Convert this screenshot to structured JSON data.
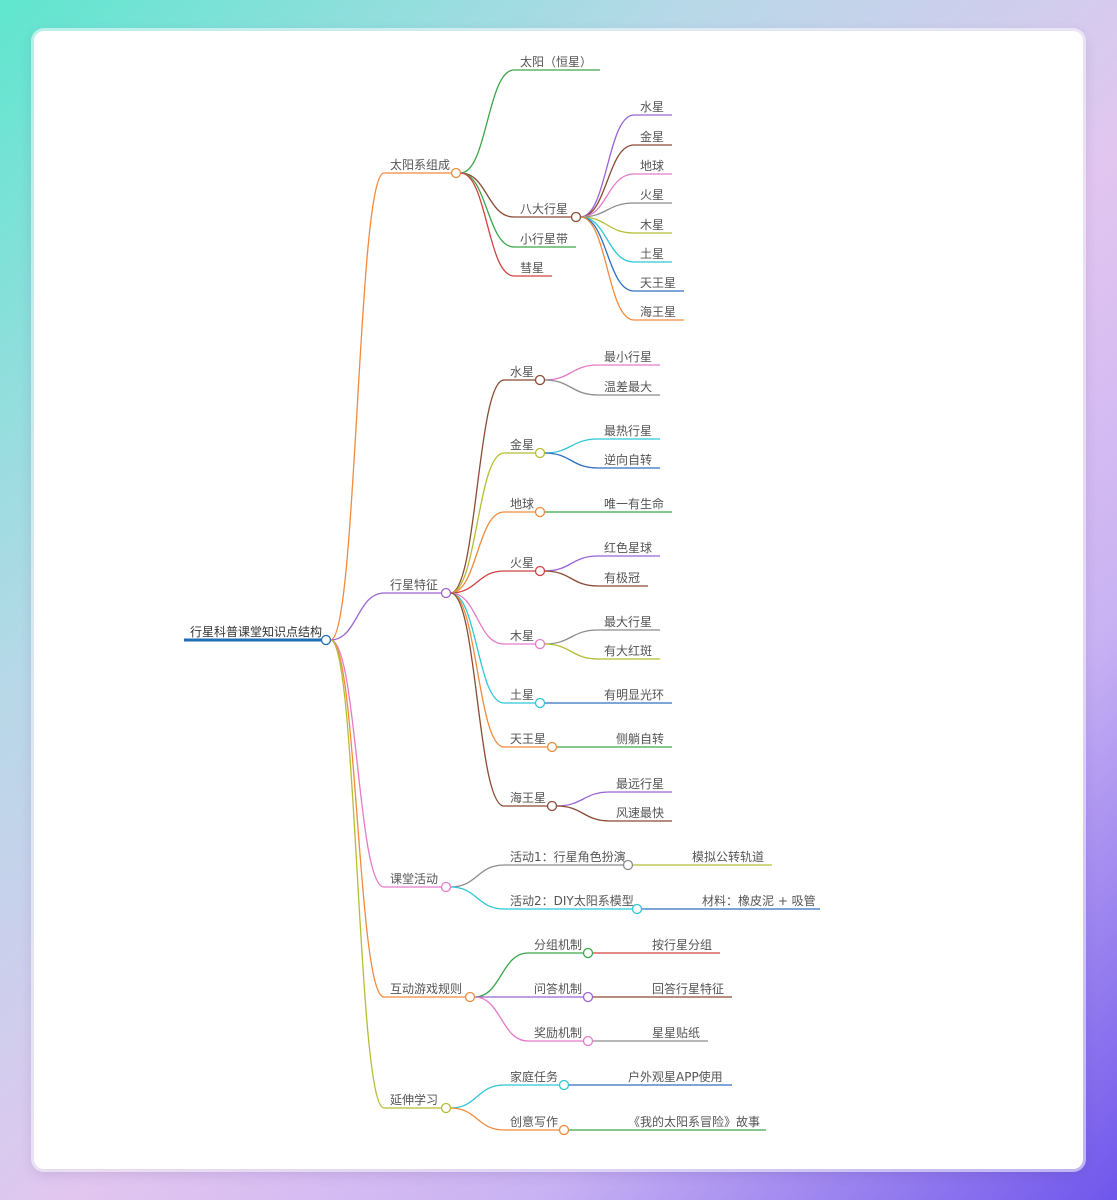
{
  "colors": {
    "orange": "#f28a3c",
    "green": "#3aa649",
    "brown": "#8b4b34",
    "purple": "#9a63d3",
    "pink": "#e57ac9",
    "gray": "#8c8c8c",
    "olive": "#b5bd33",
    "teal": "#2ec6d6",
    "blue": "#2e6fc0",
    "red": "#d14040",
    "root": "#1f6fb5"
  },
  "root": {
    "label": "行星科普课堂知识点结构",
    "children": [
      {
        "label": "太阳系组成",
        "color": "orange",
        "children": [
          {
            "label": "太阳（恒星）",
            "color": "green"
          },
          {
            "label": "八大行星",
            "color": "brown",
            "children": [
              {
                "label": "水星",
                "color": "purple"
              },
              {
                "label": "金星",
                "color": "brown"
              },
              {
                "label": "地球",
                "color": "pink"
              },
              {
                "label": "火星",
                "color": "gray"
              },
              {
                "label": "木星",
                "color": "olive"
              },
              {
                "label": "土星",
                "color": "teal"
              },
              {
                "label": "天王星",
                "color": "blue"
              },
              {
                "label": "海王星",
                "color": "orange"
              }
            ]
          },
          {
            "label": "小行星带",
            "color": "green"
          },
          {
            "label": "彗星",
            "color": "red"
          }
        ]
      },
      {
        "label": "行星特征",
        "color": "purple",
        "children": [
          {
            "label": "水星",
            "color": "brown",
            "children": [
              {
                "label": "最小行星",
                "color": "pink"
              },
              {
                "label": "温差最大",
                "color": "gray"
              }
            ]
          },
          {
            "label": "金星",
            "color": "olive",
            "children": [
              {
                "label": "最热行星",
                "color": "teal"
              },
              {
                "label": "逆向自转",
                "color": "blue"
              }
            ]
          },
          {
            "label": "地球",
            "color": "orange",
            "children": [
              {
                "label": "唯一有生命",
                "color": "green"
              }
            ]
          },
          {
            "label": "火星",
            "color": "red",
            "children": [
              {
                "label": "红色星球",
                "color": "purple"
              },
              {
                "label": "有极冠",
                "color": "brown"
              }
            ]
          },
          {
            "label": "木星",
            "color": "pink",
            "children": [
              {
                "label": "最大行星",
                "color": "gray"
              },
              {
                "label": "有大红斑",
                "color": "olive"
              }
            ]
          },
          {
            "label": "土星",
            "color": "teal",
            "children": [
              {
                "label": "有明显光环",
                "color": "blue"
              }
            ]
          },
          {
            "label": "天王星",
            "color": "orange",
            "children": [
              {
                "label": "侧躺自转",
                "color": "green"
              }
            ]
          },
          {
            "label": "海王星",
            "color": "brown",
            "children": [
              {
                "label": "最远行星",
                "color": "purple"
              },
              {
                "label": "风速最快",
                "color": "brown"
              }
            ]
          }
        ]
      },
      {
        "label": "课堂活动",
        "color": "pink",
        "children": [
          {
            "label": "活动1：行星角色扮演",
            "color": "gray",
            "children": [
              {
                "label": "模拟公转轨道",
                "color": "olive"
              }
            ]
          },
          {
            "label": "活动2：DIY太阳系模型",
            "color": "teal",
            "children": [
              {
                "label": "材料：橡皮泥 + 吸管",
                "color": "blue"
              }
            ]
          }
        ]
      },
      {
        "label": "互动游戏规则",
        "color": "orange",
        "children": [
          {
            "label": "分组机制",
            "color": "green",
            "children": [
              {
                "label": "按行星分组",
                "color": "red"
              }
            ]
          },
          {
            "label": "问答机制",
            "color": "purple",
            "children": [
              {
                "label": "回答行星特征",
                "color": "brown"
              }
            ]
          },
          {
            "label": "奖励机制",
            "color": "pink",
            "children": [
              {
                "label": "星星贴纸",
                "color": "gray"
              }
            ]
          }
        ]
      },
      {
        "label": "延伸学习",
        "color": "olive",
        "children": [
          {
            "label": "家庭任务",
            "color": "teal",
            "children": [
              {
                "label": "户外观星APP使用",
                "color": "blue"
              }
            ]
          },
          {
            "label": "创意写作",
            "color": "orange",
            "children": [
              {
                "label": "《我的太阳系冒险》故事",
                "color": "green"
              }
            ]
          }
        ]
      }
    ]
  }
}
